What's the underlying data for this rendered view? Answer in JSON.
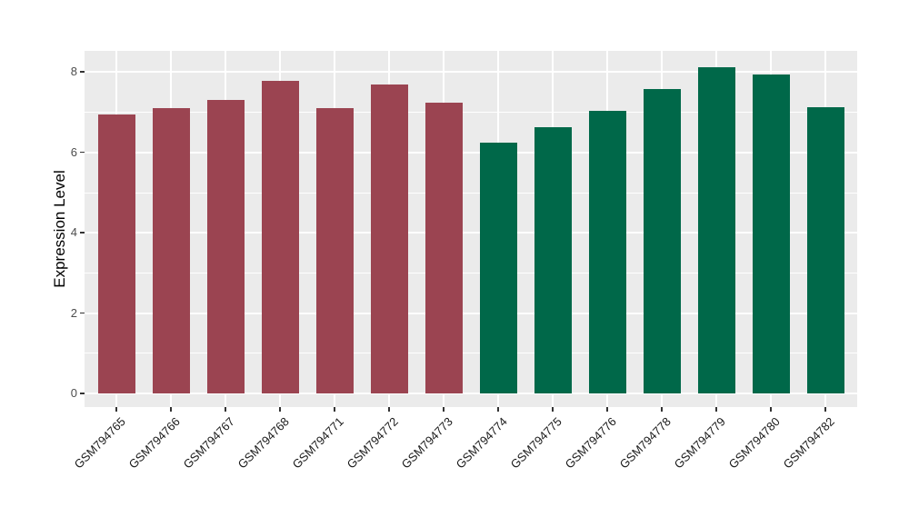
{
  "chart_data": {
    "type": "bar",
    "title": "",
    "xlabel": "",
    "ylabel": "Expression Level",
    "categories": [
      "GSM794765",
      "GSM794766",
      "GSM794767",
      "GSM794768",
      "GSM794771",
      "GSM794772",
      "GSM794773",
      "GSM794774",
      "GSM794775",
      "GSM794776",
      "GSM794778",
      "GSM794779",
      "GSM794780",
      "GSM794782"
    ],
    "values": [
      6.94,
      7.1,
      7.31,
      7.79,
      7.1,
      7.7,
      7.25,
      6.25,
      6.63,
      7.04,
      7.58,
      8.12,
      7.94,
      7.13
    ],
    "groups": [
      0,
      0,
      0,
      0,
      0,
      0,
      0,
      1,
      1,
      1,
      1,
      1,
      1,
      1
    ],
    "group_colors": [
      "#9B4451",
      "#006849"
    ],
    "ylim": [
      0,
      8.5
    ],
    "yticks": [
      0,
      2,
      4,
      6,
      8
    ],
    "yticks_minor": [
      1,
      3,
      5,
      7
    ],
    "grid": "on",
    "legend": "none",
    "bar_width_ratio": 0.68,
    "x_label_angle": -45,
    "colors": {
      "panel_bg": "#EBEBEB",
      "grid": "#FFFFFF",
      "y_axis_text": "#4D4D4D",
      "x_axis_text": "#1A1A1A",
      "tick_marks": "#333333",
      "axis_title": "#000000",
      "figure_bg": "#FFFFFF"
    }
  }
}
